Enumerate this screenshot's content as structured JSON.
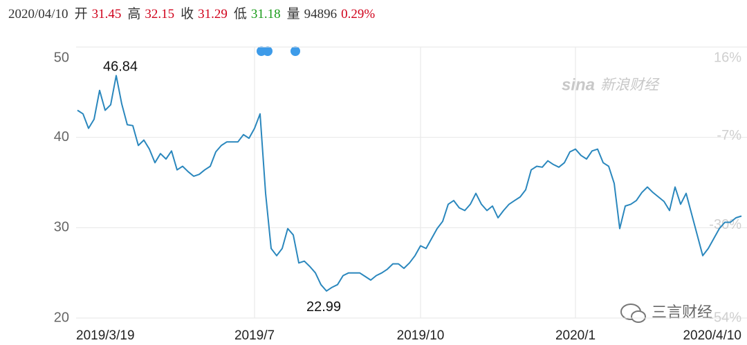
{
  "header": {
    "date": "2020/04/10",
    "fields": [
      {
        "label": "开",
        "value": 31.45,
        "color": "#d0021b"
      },
      {
        "label": "高",
        "value": 32.15,
        "color": "#d0021b"
      },
      {
        "label": "收",
        "value": 31.29,
        "color": "#d0021b"
      },
      {
        "label": "低",
        "value": 31.18,
        "color": "#1a9c1a"
      },
      {
        "label": "量",
        "value": 94896,
        "color": "#333333"
      }
    ],
    "change": "0.29%",
    "change_color": "#d0021b"
  },
  "watermarks": {
    "logo": "sina",
    "source": "新浪财经",
    "account": "三言财经"
  },
  "chart_data": {
    "type": "line",
    "series": [
      {
        "color": "#2a87bd",
        "values": [
          43.0,
          42.6,
          41.0,
          42.0,
          45.2,
          43.0,
          43.6,
          46.84,
          43.7,
          41.4,
          41.3,
          39.1,
          39.7,
          38.7,
          37.2,
          38.2,
          37.6,
          38.5,
          36.4,
          36.8,
          36.2,
          35.7,
          35.9,
          36.4,
          36.8,
          38.4,
          39.1,
          39.5,
          39.5,
          39.5,
          40.3,
          39.9,
          41.0,
          42.6,
          33.8,
          27.7,
          26.9,
          27.7,
          29.9,
          29.2,
          26.1,
          26.3,
          25.7,
          25.0,
          23.7,
          22.99,
          23.4,
          23.7,
          24.7,
          25.0,
          25.0,
          25.0,
          24.6,
          24.2,
          24.7,
          25.0,
          25.4,
          26.0,
          26.0,
          25.5,
          26.1,
          26.9,
          28.0,
          27.7,
          28.8,
          29.9,
          30.7,
          32.6,
          33.0,
          32.2,
          31.9,
          32.6,
          33.8,
          32.6,
          31.9,
          32.4,
          31.1,
          31.9,
          32.6,
          33.0,
          33.4,
          34.2,
          36.4,
          36.8,
          36.7,
          37.4,
          37.0,
          36.7,
          37.2,
          38.4,
          38.7,
          38.0,
          37.6,
          38.5,
          38.7,
          37.2,
          36.8,
          34.9,
          29.9,
          32.4,
          32.6,
          33.0,
          33.9,
          34.5,
          33.9,
          33.4,
          32.9,
          31.9,
          34.5,
          32.6,
          33.8,
          31.5,
          29.2,
          26.9,
          27.7,
          28.8,
          29.9,
          30.6,
          30.6,
          31.1,
          31.29
        ]
      }
    ],
    "xlim": [
      0,
      120
    ],
    "xticks": [
      {
        "value": 0,
        "label": "2019/3/19"
      },
      {
        "value": 32,
        "label": "2019/7"
      },
      {
        "value": 62,
        "label": "2019/10"
      },
      {
        "value": 90,
        "label": "2020/1"
      },
      {
        "value": 120,
        "label": "2020/4/10"
      }
    ],
    "ylim": [
      20,
      50
    ],
    "yticks": [
      20,
      30,
      40,
      50
    ],
    "y2lim": [
      -54,
      16
    ],
    "y2ticks": [
      {
        "value": 16,
        "label": "16%"
      },
      {
        "value": -7,
        "label": "-7%"
      },
      {
        "value": -30,
        "label": "-30%"
      },
      {
        "value": -54,
        "label": "-54%"
      }
    ],
    "grid": true
  }
}
